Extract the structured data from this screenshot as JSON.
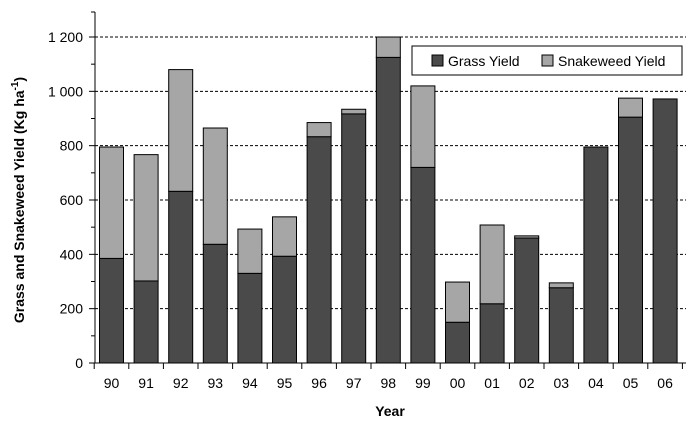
{
  "chart_data": {
    "type": "bar",
    "stacked": true,
    "categories": [
      "90",
      "91",
      "92",
      "93",
      "94",
      "95",
      "96",
      "97",
      "98",
      "99",
      "00",
      "01",
      "02",
      "03",
      "04",
      "05",
      "06"
    ],
    "series": [
      {
        "name": "Grass Yield",
        "color": "#4a4a4a",
        "values": [
          385,
          302,
          632,
          437,
          330,
          393,
          833,
          917,
          1125,
          720,
          150,
          218,
          460,
          277,
          795,
          905,
          972
        ]
      },
      {
        "name": "Snakeweed Yield",
        "color": "#a6a6a6",
        "values": [
          410,
          465,
          448,
          428,
          163,
          145,
          52,
          17,
          75,
          300,
          148,
          290,
          8,
          18,
          0,
          70,
          0
        ]
      }
    ],
    "xlabel": "Year",
    "ylabel_main": "Grass and Snakeweed Yield (Kg ha",
    "ylabel_sup": "-1",
    "ylabel_close": ")",
    "yticks": [
      "0",
      "200",
      "400",
      "600",
      "800",
      "1 000",
      "1 200"
    ],
    "ytick_values": [
      0,
      200,
      400,
      600,
      800,
      1000,
      1200
    ],
    "ylim": [
      0,
      1200
    ],
    "grid": "horizontal dashed",
    "legend_position": "top-right"
  }
}
